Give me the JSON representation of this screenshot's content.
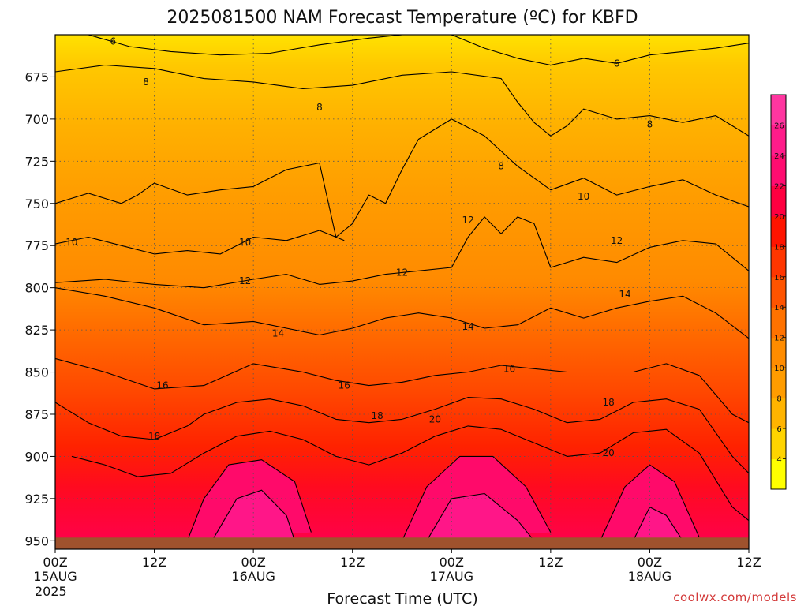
{
  "chart_data": {
    "type": "heatmap",
    "title": "2025081500 NAM Forecast Temperature (ºC) for KBFD",
    "xlabel": "Forecast Time (UTC)",
    "ylabel": "",
    "credit": "coolwx.com/models",
    "x_ticks": [
      {
        "label": "00Z",
        "sub": "15AUG",
        "year": "2025"
      },
      {
        "label": "12Z",
        "sub": "",
        "year": ""
      },
      {
        "label": "00Z",
        "sub": "16AUG",
        "year": ""
      },
      {
        "label": "12Z",
        "sub": "",
        "year": ""
      },
      {
        "label": "00Z",
        "sub": "17AUG",
        "year": ""
      },
      {
        "label": "12Z",
        "sub": "",
        "year": ""
      },
      {
        "label": "00Z",
        "sub": "18AUG",
        "year": ""
      },
      {
        "label": "12Z",
        "sub": "",
        "year": ""
      }
    ],
    "x_range_hours": [
      0,
      84
    ],
    "y_ticks": [
      675,
      700,
      725,
      750,
      775,
      800,
      825,
      850,
      875,
      900,
      925,
      950
    ],
    "y_range_hpa": [
      650,
      955
    ],
    "ground_level_hpa": 950,
    "ground_color": "#a0522d",
    "grid": true,
    "colorbar": {
      "levels": [
        4,
        6,
        8,
        10,
        12,
        14,
        16,
        18,
        20,
        22,
        24,
        26
      ],
      "colors": [
        "#ffff00",
        "#ffd400",
        "#ffb400",
        "#ff9c00",
        "#ff8c00",
        "#ff7200",
        "#ff5400",
        "#ff3600",
        "#ff1400",
        "#ff0040",
        "#ff0c70",
        "#ff1c8a",
        "#ff36a0"
      ]
    },
    "isotherms": [
      {
        "temp": 6,
        "points": [
          [
            4,
            650
          ],
          [
            9,
            657
          ],
          [
            14,
            660
          ],
          [
            20,
            662
          ],
          [
            26,
            661
          ],
          [
            32,
            656
          ],
          [
            38,
            652
          ],
          [
            42,
            650
          ]
        ]
      },
      {
        "temp": 6,
        "points": [
          [
            48,
            650
          ],
          [
            52,
            658
          ],
          [
            56,
            664
          ],
          [
            60,
            668
          ],
          [
            64,
            664
          ],
          [
            68,
            667
          ],
          [
            72,
            662
          ],
          [
            76,
            660
          ],
          [
            80,
            658
          ],
          [
            84,
            655
          ]
        ]
      },
      {
        "temp": 8,
        "points": [
          [
            0,
            672
          ],
          [
            6,
            668
          ],
          [
            12,
            670
          ],
          [
            18,
            676
          ],
          [
            24,
            678
          ],
          [
            30,
            682
          ],
          [
            36,
            680
          ],
          [
            42,
            674
          ],
          [
            48,
            672
          ],
          [
            54,
            676
          ],
          [
            56,
            690
          ],
          [
            58,
            702
          ],
          [
            60,
            710
          ],
          [
            62,
            704
          ],
          [
            64,
            694
          ],
          [
            68,
            700
          ],
          [
            72,
            698
          ],
          [
            76,
            702
          ],
          [
            80,
            698
          ],
          [
            84,
            710
          ]
        ]
      },
      {
        "temp": 10,
        "points": [
          [
            0,
            750
          ],
          [
            4,
            744
          ],
          [
            8,
            750
          ],
          [
            10,
            745
          ],
          [
            12,
            738
          ],
          [
            16,
            745
          ],
          [
            20,
            742
          ],
          [
            24,
            740
          ],
          [
            28,
            730
          ],
          [
            32,
            726
          ],
          [
            34,
            770
          ],
          [
            36,
            762
          ],
          [
            38,
            745
          ],
          [
            40,
            750
          ],
          [
            42,
            730
          ],
          [
            44,
            712
          ],
          [
            48,
            700
          ],
          [
            52,
            710
          ],
          [
            56,
            728
          ],
          [
            60,
            742
          ],
          [
            64,
            735
          ],
          [
            68,
            745
          ],
          [
            72,
            740
          ],
          [
            76,
            736
          ],
          [
            80,
            745
          ],
          [
            84,
            752
          ]
        ]
      },
      {
        "temp": 10,
        "points": [
          [
            0,
            774
          ],
          [
            4,
            770
          ],
          [
            8,
            775
          ],
          [
            12,
            780
          ],
          [
            16,
            778
          ],
          [
            20,
            780
          ],
          [
            24,
            770
          ],
          [
            28,
            772
          ],
          [
            32,
            766
          ],
          [
            35,
            772
          ]
        ]
      },
      {
        "temp": 12,
        "points": [
          [
            0,
            797
          ],
          [
            6,
            795
          ],
          [
            12,
            798
          ],
          [
            18,
            800
          ],
          [
            24,
            795
          ],
          [
            28,
            792
          ],
          [
            32,
            798
          ],
          [
            36,
            796
          ],
          [
            40,
            792
          ],
          [
            44,
            790
          ],
          [
            48,
            788
          ],
          [
            50,
            770
          ],
          [
            52,
            758
          ],
          [
            54,
            768
          ],
          [
            56,
            758
          ],
          [
            58,
            762
          ],
          [
            60,
            788
          ],
          [
            64,
            782
          ],
          [
            68,
            785
          ],
          [
            72,
            776
          ],
          [
            76,
            772
          ],
          [
            80,
            774
          ],
          [
            84,
            790
          ]
        ]
      },
      {
        "temp": 14,
        "points": [
          [
            0,
            800
          ],
          [
            6,
            805
          ],
          [
            12,
            812
          ],
          [
            18,
            822
          ],
          [
            24,
            820
          ],
          [
            28,
            824
          ],
          [
            32,
            828
          ],
          [
            36,
            824
          ],
          [
            40,
            818
          ],
          [
            44,
            815
          ],
          [
            48,
            818
          ],
          [
            52,
            824
          ],
          [
            56,
            822
          ],
          [
            60,
            812
          ],
          [
            64,
            818
          ],
          [
            68,
            812
          ],
          [
            72,
            808
          ],
          [
            76,
            805
          ],
          [
            80,
            815
          ],
          [
            84,
            830
          ]
        ]
      },
      {
        "temp": 16,
        "points": [
          [
            0,
            842
          ],
          [
            6,
            850
          ],
          [
            12,
            860
          ],
          [
            18,
            858
          ],
          [
            24,
            845
          ],
          [
            30,
            850
          ],
          [
            34,
            855
          ],
          [
            38,
            858
          ],
          [
            42,
            856
          ],
          [
            46,
            852
          ],
          [
            50,
            850
          ],
          [
            54,
            846
          ],
          [
            58,
            848
          ],
          [
            62,
            850
          ],
          [
            66,
            850
          ],
          [
            70,
            850
          ],
          [
            74,
            845
          ],
          [
            78,
            852
          ],
          [
            82,
            875
          ],
          [
            84,
            880
          ]
        ]
      },
      {
        "temp": 18,
        "points": [
          [
            0,
            868
          ],
          [
            4,
            880
          ],
          [
            8,
            888
          ],
          [
            12,
            890
          ],
          [
            16,
            882
          ],
          [
            18,
            875
          ],
          [
            22,
            868
          ],
          [
            26,
            866
          ],
          [
            30,
            870
          ],
          [
            34,
            878
          ],
          [
            38,
            880
          ],
          [
            42,
            878
          ],
          [
            46,
            872
          ],
          [
            50,
            865
          ],
          [
            54,
            866
          ],
          [
            58,
            872
          ],
          [
            62,
            880
          ],
          [
            66,
            878
          ],
          [
            70,
            868
          ],
          [
            74,
            866
          ],
          [
            78,
            872
          ],
          [
            82,
            900
          ],
          [
            84,
            910
          ]
        ]
      },
      {
        "temp": 20,
        "points": [
          [
            2,
            900
          ],
          [
            6,
            905
          ],
          [
            10,
            912
          ],
          [
            14,
            910
          ],
          [
            18,
            898
          ],
          [
            22,
            888
          ],
          [
            26,
            885
          ],
          [
            30,
            890
          ],
          [
            34,
            900
          ],
          [
            38,
            905
          ],
          [
            42,
            898
          ],
          [
            46,
            888
          ],
          [
            50,
            882
          ],
          [
            54,
            884
          ],
          [
            58,
            892
          ],
          [
            62,
            900
          ],
          [
            66,
            898
          ],
          [
            70,
            886
          ],
          [
            74,
            884
          ],
          [
            78,
            898
          ],
          [
            82,
            930
          ],
          [
            84,
            938
          ]
        ]
      },
      {
        "temp": 22,
        "points": [
          [
            16,
            950
          ],
          [
            18,
            925
          ],
          [
            21,
            905
          ],
          [
            25,
            902
          ],
          [
            29,
            915
          ],
          [
            31,
            945
          ]
        ]
      },
      {
        "temp": 22,
        "points": [
          [
            42,
            950
          ],
          [
            45,
            918
          ],
          [
            49,
            900
          ],
          [
            53,
            900
          ],
          [
            57,
            918
          ],
          [
            60,
            945
          ]
        ]
      },
      {
        "temp": 22,
        "points": [
          [
            66,
            950
          ],
          [
            69,
            918
          ],
          [
            72,
            905
          ],
          [
            75,
            915
          ],
          [
            78,
            948
          ]
        ]
      },
      {
        "temp": 24,
        "points": [
          [
            19,
            950
          ],
          [
            22,
            925
          ],
          [
            25,
            920
          ],
          [
            28,
            935
          ],
          [
            29,
            950
          ]
        ]
      },
      {
        "temp": 24,
        "points": [
          [
            45,
            950
          ],
          [
            48,
            925
          ],
          [
            52,
            922
          ],
          [
            56,
            938
          ],
          [
            58,
            950
          ]
        ]
      },
      {
        "temp": 24,
        "points": [
          [
            70,
            950
          ],
          [
            72,
            930
          ],
          [
            74,
            935
          ],
          [
            76,
            950
          ]
        ]
      }
    ],
    "contour_labels": [
      {
        "text": "6",
        "x": 7,
        "p": 654
      },
      {
        "text": "6",
        "x": 68,
        "p": 667
      },
      {
        "text": "8",
        "x": 11,
        "p": 678
      },
      {
        "text": "8",
        "x": 32,
        "p": 693
      },
      {
        "text": "8",
        "x": 54,
        "p": 728
      },
      {
        "text": "8",
        "x": 72,
        "p": 703
      },
      {
        "text": "10",
        "x": 2,
        "p": 773
      },
      {
        "text": "10",
        "x": 23,
        "p": 773
      },
      {
        "text": "10",
        "x": 64,
        "p": 746
      },
      {
        "text": "12",
        "x": 23,
        "p": 796
      },
      {
        "text": "12",
        "x": 42,
        "p": 791
      },
      {
        "text": "12",
        "x": 50,
        "p": 760
      },
      {
        "text": "12",
        "x": 68,
        "p": 772
      },
      {
        "text": "14",
        "x": 27,
        "p": 827
      },
      {
        "text": "14",
        "x": 50,
        "p": 823
      },
      {
        "text": "14",
        "x": 69,
        "p": 804
      },
      {
        "text": "16",
        "x": 13,
        "p": 858
      },
      {
        "text": "16",
        "x": 35,
        "p": 858
      },
      {
        "text": "16",
        "x": 55,
        "p": 848
      },
      {
        "text": "18",
        "x": 12,
        "p": 888
      },
      {
        "text": "18",
        "x": 39,
        "p": 876
      },
      {
        "text": "18",
        "x": 67,
        "p": 868
      },
      {
        "text": "20",
        "x": 46,
        "p": 878
      },
      {
        "text": "20",
        "x": 67,
        "p": 898
      }
    ]
  }
}
